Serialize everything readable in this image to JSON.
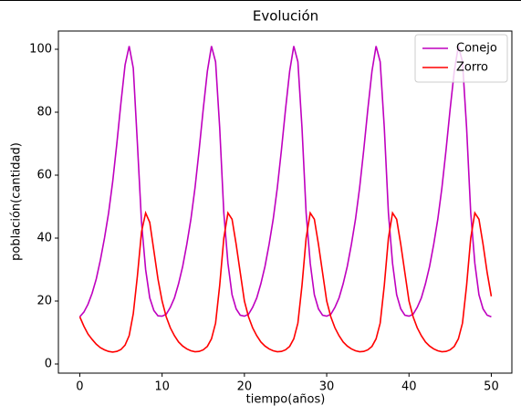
{
  "chart_data": {
    "type": "line",
    "title": "Evolución",
    "xlabel": "tiempo(años)",
    "ylabel": "población(cantidad)",
    "x": [
      0,
      0.5,
      1,
      1.5,
      2,
      2.5,
      3,
      3.5,
      4,
      4.5,
      5,
      5.5,
      6,
      6.5,
      7,
      7.5,
      8,
      8.5,
      9,
      9.5,
      10,
      10.5,
      11,
      11.5,
      12,
      12.5,
      13,
      13.5,
      14,
      14.5,
      15,
      15.5,
      16,
      16.5,
      17,
      17.5,
      18,
      18.5,
      19,
      19.5,
      20,
      20.5,
      21,
      21.5,
      22,
      22.5,
      23,
      23.5,
      24,
      24.5,
      25,
      25.5,
      26,
      26.5,
      27,
      27.5,
      28,
      28.5,
      29,
      29.5,
      30,
      30.5,
      31,
      31.5,
      32,
      32.5,
      33,
      33.5,
      34,
      34.5,
      35,
      35.5,
      36,
      36.5,
      37,
      37.5,
      38,
      38.5,
      39,
      39.5,
      40,
      40.5,
      41,
      41.5,
      42,
      42.5,
      43,
      43.5,
      44,
      44.5,
      45,
      45.5,
      46,
      46.5,
      47,
      47.5,
      48,
      48.5,
      49,
      49.5,
      50
    ],
    "series": [
      {
        "name": "Conejo",
        "color": "#bf00bf",
        "values": [
          15,
          16.5,
          19,
          22.5,
          27,
          33,
          40,
          48,
          58,
          70,
          83,
          95,
          101,
          94,
          70,
          45,
          30,
          21,
          17,
          15.3,
          15.2,
          15.8,
          18,
          21,
          25.5,
          31,
          38,
          46,
          56,
          68,
          81,
          93,
          101,
          96,
          75,
          48,
          32,
          22,
          17.5,
          15.5,
          15.2,
          15.8,
          18,
          21,
          25.5,
          31,
          38,
          46,
          56,
          68,
          81,
          93,
          101,
          96,
          75,
          48,
          32,
          22,
          17.5,
          15.5,
          15.2,
          15.8,
          18,
          21,
          25.5,
          31,
          38,
          46,
          56,
          68,
          81,
          93,
          101,
          96,
          75,
          48,
          32,
          22,
          17.5,
          15.5,
          15.2,
          15.8,
          18,
          21,
          25.5,
          31,
          38,
          46,
          56,
          68,
          81,
          93,
          101,
          96,
          75,
          48,
          32,
          22,
          17.5,
          15.5,
          15
        ]
      },
      {
        "name": "Zorro",
        "color": "#ff0000",
        "values": [
          15,
          12,
          9.5,
          7.8,
          6.3,
          5.2,
          4.5,
          4,
          3.8,
          4,
          4.6,
          6,
          9,
          16,
          28,
          42,
          48,
          45,
          36,
          27,
          20,
          15,
          11.5,
          9,
          7,
          5.7,
          4.8,
          4.2,
          3.9,
          4,
          4.5,
          5.6,
          8,
          13,
          25,
          40,
          48,
          46,
          38,
          29,
          20,
          15,
          11.5,
          9,
          7,
          5.7,
          4.8,
          4.2,
          3.9,
          4,
          4.5,
          5.6,
          8,
          13,
          25,
          40,
          48,
          46,
          38,
          29,
          20,
          15,
          11.5,
          9,
          7,
          5.7,
          4.8,
          4.2,
          3.9,
          4,
          4.5,
          5.6,
          8,
          13,
          25,
          40,
          48,
          46,
          38,
          29,
          20,
          15,
          11.5,
          9,
          7,
          5.7,
          4.8,
          4.2,
          3.9,
          4,
          4.5,
          5.6,
          8,
          13,
          25,
          40,
          48,
          46,
          38,
          29,
          21.5
        ]
      }
    ],
    "xlim": [
      -2.6,
      52.5
    ],
    "ylim": [
      -2.9,
      105.8
    ],
    "xticks": [
      0,
      10,
      20,
      30,
      40,
      50
    ],
    "yticks": [
      0,
      20,
      40,
      60,
      80,
      100
    ],
    "legend": "upper right"
  }
}
